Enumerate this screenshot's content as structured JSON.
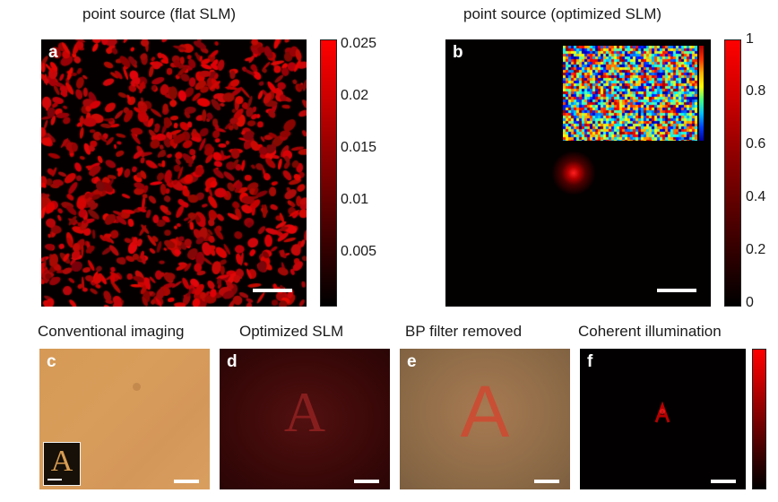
{
  "colors": {
    "speckle_red": "#d80c0c",
    "field_dark": "#050000",
    "amber_background": "#d79a57",
    "optimized_background": "#3a0707",
    "bp_background": "#94724c"
  },
  "panel_a": {
    "label": "a",
    "title": "point source (flat SLM)",
    "colorbar_ticks": [
      "0.025",
      "0.02",
      "0.015",
      "0.01",
      "0.005"
    ],
    "colorbar_range": [
      0,
      0.025
    ],
    "has_scale_bar": true
  },
  "panel_b": {
    "label": "b",
    "title": "point source (optimized SLM)",
    "colorbar_ticks": [
      "1",
      "0.8",
      "0.6",
      "0.4",
      "0.2",
      "0"
    ],
    "colorbar_range": [
      0,
      1
    ],
    "inset": "optimized SLM phase pattern (jet colormap)",
    "has_scale_bar": true
  },
  "panel_c": {
    "label": "c",
    "title": "Conventional imaging",
    "inset_letter": "A"
  },
  "panel_d": {
    "label": "d",
    "title": "Optimized SLM",
    "letter": "A"
  },
  "panel_e": {
    "label": "e",
    "title": "BP filter removed",
    "letter": "A"
  },
  "panel_f": {
    "label": "f",
    "title": "Coherent illumination"
  }
}
